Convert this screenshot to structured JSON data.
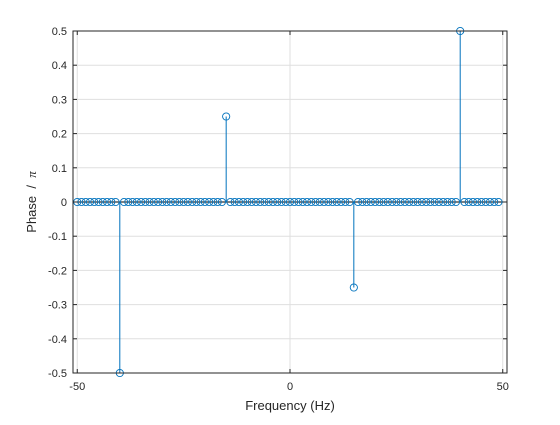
{
  "chart_data": {
    "type": "stem",
    "xlabel": "Frequency (Hz)",
    "ylabel_prefix": "Phase  /  ",
    "ylabel_symbol": "π",
    "xlim": [
      -51,
      51
    ],
    "ylim": [
      -0.5,
      0.5
    ],
    "xticks": [
      -50,
      0,
      50
    ],
    "yticks": [
      -0.5,
      -0.4,
      -0.3,
      -0.2,
      -0.1,
      0,
      0.1,
      0.2,
      0.3,
      0.4,
      0.5
    ],
    "xtick_labels": [
      "-50",
      "0",
      "50"
    ],
    "ytick_labels": [
      "-0.5",
      "-0.4",
      "-0.3",
      "-0.2",
      "-0.1",
      "0",
      "0.1",
      "0.2",
      "0.3",
      "0.4",
      "0.5"
    ],
    "grid": true,
    "marker": "circle-open",
    "x_range": {
      "start": -50,
      "end": 49,
      "step": 1
    },
    "nonzero_points": [
      {
        "x": -40,
        "y": -0.5
      },
      {
        "x": -15,
        "y": 0.25
      },
      {
        "x": 15,
        "y": -0.25
      },
      {
        "x": 40,
        "y": 0.5
      }
    ]
  },
  "colors": {
    "series": "#0072bd",
    "grid": "#dfdfdf",
    "axis": "#262626",
    "baseline": "#000000"
  }
}
